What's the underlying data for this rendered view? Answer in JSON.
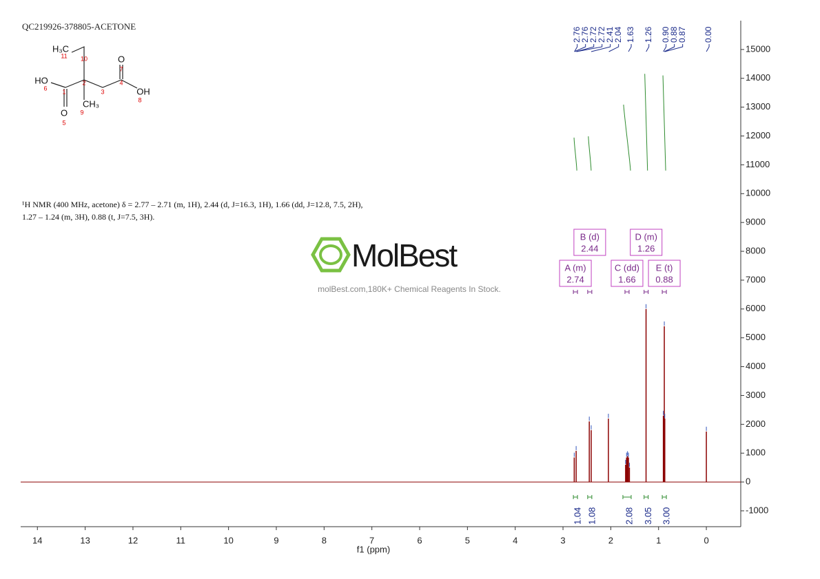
{
  "chart_data": {
    "type": "spectrum",
    "title": "QC219926-378805-ACETONE",
    "description": [
      "¹H NMR (400 MHz, acetone) δ = 2.77 – 2.71 (m, 1H), 2.44 (d, J=16.3, 1H), 1.66 (dd, J=12.8, 7.5, 2H),",
      "1.27 – 1.24 (m, 3H), 0.88 (t, J=7.5, 3H)."
    ],
    "watermark": "MolBest",
    "watermark_subtitle": "molBest.com,180K+ Chemical Reagents In Stock.",
    "structure": {
      "labels": [
        "H₃C",
        "HO",
        "O",
        "OH",
        "O",
        "CH₃"
      ],
      "numbers": [
        "11",
        "10",
        "6",
        "1",
        "2",
        "3",
        "4",
        "7",
        "8",
        "5",
        "9"
      ]
    },
    "xlabel": "f1 (ppm)",
    "xlim": [
      14.35,
      -0.72
    ],
    "xticks": [
      14,
      13,
      12,
      11,
      10,
      9,
      8,
      7,
      6,
      5,
      4,
      3,
      2,
      1,
      0
    ],
    "ylim": [
      -1550,
      16000
    ],
    "yticks": [
      -1000,
      0,
      1000,
      2000,
      3000,
      4000,
      5000,
      6000,
      7000,
      8000,
      9000,
      10000,
      11000,
      12000,
      13000,
      14000,
      15000
    ],
    "color": "#8b0000",
    "peaks": {
      "x": [
        2.765,
        2.725,
        2.45,
        2.41,
        2.05,
        1.69,
        1.67,
        1.65,
        1.63,
        1.61,
        1.262,
        0.9,
        0.88,
        0.87,
        0.0
      ],
      "values": [
        850,
        1080,
        2100,
        1800,
        2200,
        600,
        850,
        900,
        850,
        500,
        6000,
        2300,
        5400,
        2200,
        1750
      ]
    },
    "peak_labels": {
      "values": [
        2.76,
        2.76,
        2.72,
        2.72,
        2.41,
        2.04,
        1.63,
        1.26,
        0.9,
        0.88,
        0.87,
        0
      ],
      "value_labels": [
        "2.76",
        "2.76",
        "2.72",
        "2.72",
        "2.41",
        "2.04",
        "1.63",
        "1.26",
        "0.90",
        "0.88",
        "0.87",
        "0.00"
      ]
    },
    "multiplets": {
      "labels": [
        "A (m)",
        "B (d)",
        "C (dd)",
        "D (m)",
        "E (t)"
      ],
      "values": [
        2.74,
        2.44,
        1.66,
        1.26,
        0.88
      ]
    },
    "integrals": {
      "x": [
        2.74,
        2.44,
        1.66,
        1.26,
        0.88
      ],
      "values": [
        1.04,
        1.08,
        2.08,
        3.05,
        3
      ],
      "value_labels": [
        "1.04",
        "1.08",
        "2.08",
        "3.05",
        "3.00"
      ],
      "color": "#2e8b2e"
    }
  }
}
